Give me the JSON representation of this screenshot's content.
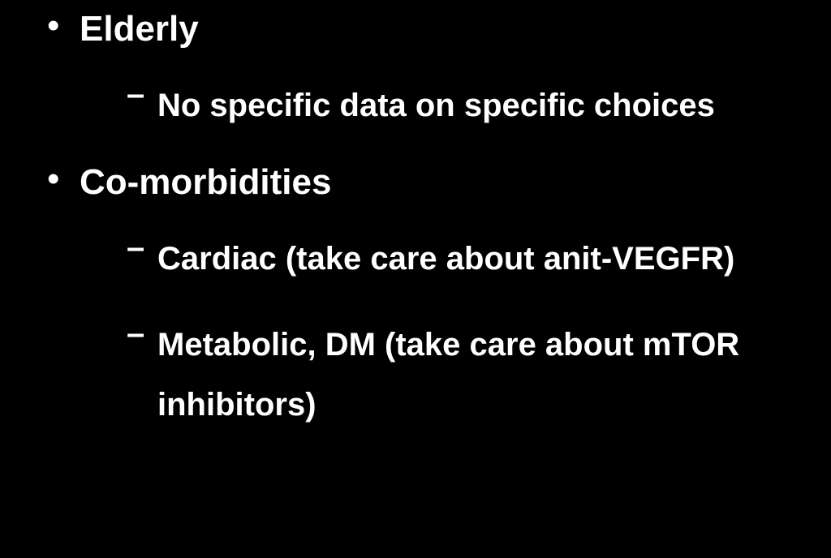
{
  "slide": {
    "background_color": "#000000",
    "text_color": "#ffffff",
    "font_family": "Arial",
    "bullets": [
      {
        "label": "Elderly",
        "children": [
          {
            "label": "No specific data on specific choices"
          }
        ]
      },
      {
        "label": "Co-morbidities",
        "children": [
          {
            "label": "Cardiac (take care about anit-VEGFR)"
          },
          {
            "label": "Metabolic, DM (take care about mTOR inhibitors)"
          }
        ]
      }
    ]
  }
}
